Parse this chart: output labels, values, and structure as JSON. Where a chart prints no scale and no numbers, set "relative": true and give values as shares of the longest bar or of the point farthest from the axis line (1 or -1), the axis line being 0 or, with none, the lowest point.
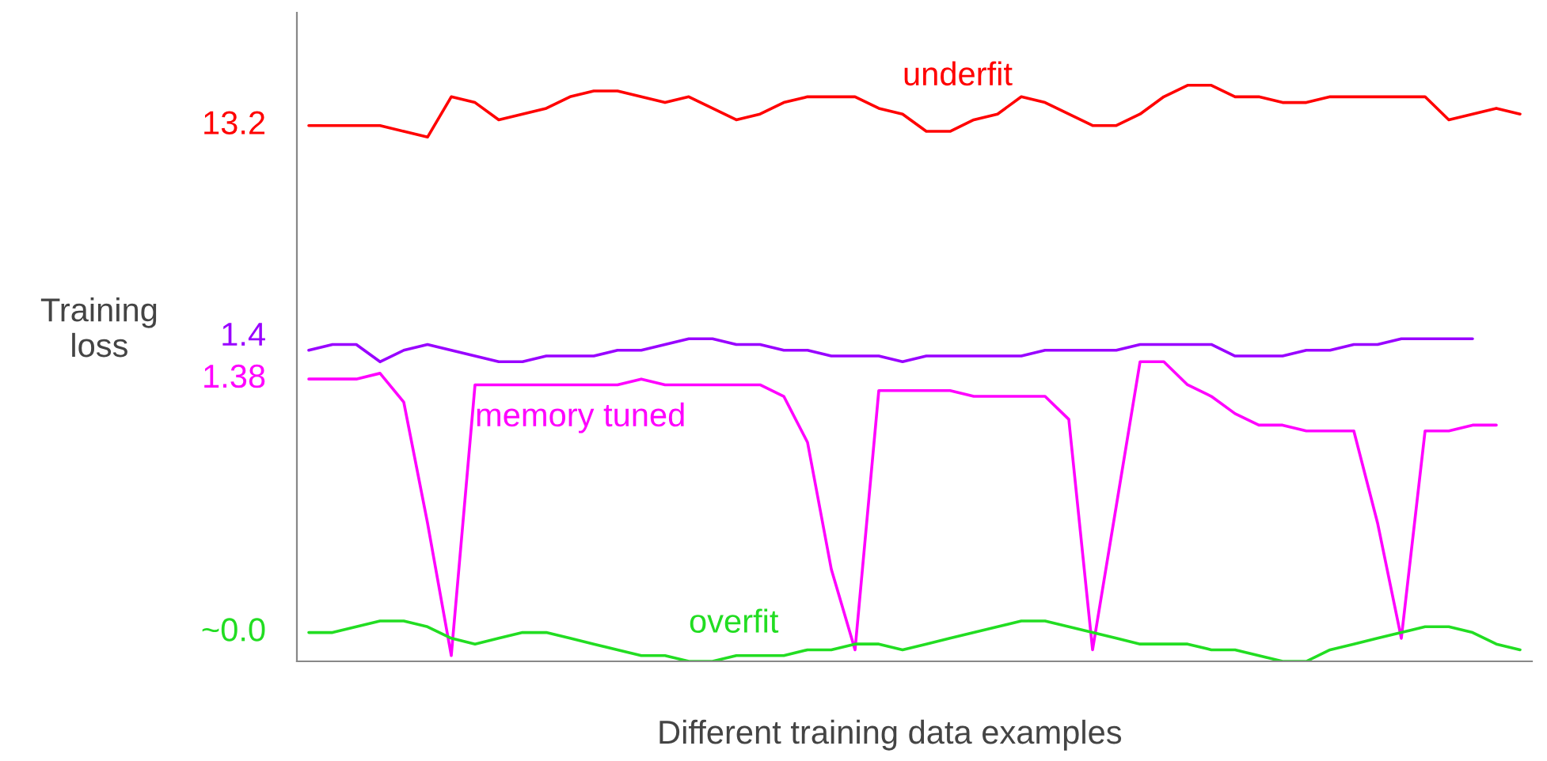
{
  "chart_data": {
    "type": "line",
    "relative": true,
    "grid": false,
    "legend": false,
    "marker": "none",
    "line_style": "solid",
    "xlabel": "Different training data examples",
    "ylabel": "Training\nloss",
    "categories": [
      null,
      null,
      null,
      null,
      null,
      null,
      null,
      null,
      null,
      null,
      null,
      null,
      null,
      null,
      null,
      null,
      null,
      null,
      null,
      null,
      null,
      null,
      null,
      null,
      null,
      null,
      null,
      null,
      null,
      null,
      null,
      null,
      null,
      null,
      null,
      null,
      null,
      null,
      null,
      null,
      null,
      null,
      null,
      null,
      null,
      null,
      null,
      null,
      null,
      null,
      null,
      null
    ],
    "series": [
      {
        "name": "underfit",
        "color": "#ff0000",
        "values": [
          0.93,
          0.93,
          0.93,
          0.93,
          0.92,
          0.91,
          0.98,
          0.97,
          0.94,
          0.95,
          0.96,
          0.98,
          0.99,
          0.99,
          0.98,
          0.97,
          0.98,
          0.96,
          0.94,
          0.95,
          0.97,
          0.98,
          0.98,
          0.98,
          0.96,
          0.95,
          0.92,
          0.92,
          0.94,
          0.95,
          0.98,
          0.97,
          0.95,
          0.93,
          0.93,
          0.95,
          0.98,
          1.0,
          1.0,
          0.98,
          0.98,
          0.97,
          0.97,
          0.98,
          0.98,
          0.98,
          0.98,
          0.98,
          0.94,
          0.95,
          0.96,
          0.95
        ]
      },
      {
        "color": "#9900ff",
        "values": [
          0.54,
          0.55,
          0.55,
          0.52,
          0.54,
          0.55,
          0.54,
          0.53,
          0.52,
          0.52,
          0.53,
          0.53,
          0.53,
          0.54,
          0.54,
          0.55,
          0.56,
          0.56,
          0.55,
          0.55,
          0.54,
          0.54,
          0.53,
          0.53,
          0.53,
          0.52,
          0.53,
          0.53,
          0.53,
          0.53,
          0.53,
          0.54,
          0.54,
          0.54,
          0.54,
          0.55,
          0.55,
          0.55,
          0.55,
          0.53,
          0.53,
          0.53,
          0.54,
          0.54,
          0.55,
          0.55,
          0.56,
          0.56,
          0.56,
          0.56,
          null,
          null
        ]
      },
      {
        "name": "memory tuned",
        "color": "#ff00ff",
        "values": [
          0.49,
          0.49,
          0.49,
          0.5,
          0.45,
          0.24,
          0.01,
          0.48,
          0.48,
          0.48,
          0.48,
          0.48,
          0.48,
          0.48,
          0.49,
          0.48,
          0.48,
          0.48,
          0.48,
          0.48,
          0.46,
          0.38,
          0.16,
          0.02,
          0.47,
          0.47,
          0.47,
          0.47,
          0.46,
          0.46,
          0.46,
          0.46,
          0.42,
          0.02,
          0.27,
          0.52,
          0.52,
          0.48,
          0.46,
          0.43,
          0.41,
          0.41,
          0.4,
          0.4,
          0.4,
          0.24,
          0.04,
          0.4,
          0.4,
          0.41,
          0.41,
          null
        ]
      },
      {
        "name": "overfit",
        "color": "#22dd22",
        "values": [
          0.05,
          0.05,
          0.06,
          0.07,
          0.07,
          0.06,
          0.04,
          0.03,
          0.04,
          0.05,
          0.05,
          0.04,
          0.03,
          0.02,
          0.01,
          0.01,
          0.0,
          0.0,
          0.01,
          0.01,
          0.01,
          0.02,
          0.02,
          0.03,
          0.03,
          0.02,
          0.03,
          0.04,
          0.05,
          0.06,
          0.07,
          0.07,
          0.06,
          0.05,
          0.04,
          0.03,
          0.03,
          0.03,
          0.02,
          0.02,
          0.01,
          0.0,
          0.0,
          0.02,
          0.03,
          0.04,
          0.05,
          0.06,
          0.06,
          0.05,
          0.03,
          0.02
        ]
      }
    ],
    "annotations": [
      "13.2",
      "1.4",
      "1.38",
      "~0.0"
    ]
  }
}
